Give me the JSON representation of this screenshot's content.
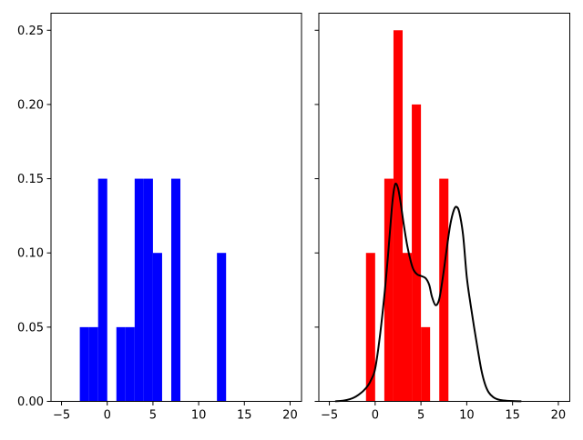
{
  "figure": {
    "background": "#ffffff",
    "frame_color": "#000000",
    "tick_color": "#000000",
    "title": ""
  },
  "chart_data": [
    {
      "type": "bar",
      "subtype": "histogram-density",
      "name": "left-histogram",
      "title": "",
      "xlabel": "",
      "ylabel": "",
      "bar_color": "#0000ff",
      "grid": false,
      "legend": null,
      "xlim": [
        -6.15,
        21.25
      ],
      "ylim": [
        0,
        0.2615
      ],
      "xticks": [
        -5,
        0,
        5,
        10,
        15,
        20
      ],
      "xtick_labels": [
        "−5",
        "0",
        "5",
        "10",
        "15",
        "20"
      ],
      "yticks": [
        0.0,
        0.05,
        0.1,
        0.15,
        0.2,
        0.25
      ],
      "ytick_labels": [
        "0.00",
        "0.05",
        "0.10",
        "0.15",
        "0.20",
        "0.25"
      ],
      "show_ytick_labels": true,
      "bins": [
        [
          -3,
          -2,
          0.05
        ],
        [
          -2,
          -1,
          0.05
        ],
        [
          -1,
          0,
          0.15
        ],
        [
          1,
          2,
          0.05
        ],
        [
          2,
          3,
          0.05
        ],
        [
          3,
          4,
          0.15
        ],
        [
          4,
          5,
          0.15
        ],
        [
          5,
          6,
          0.1
        ],
        [
          7,
          8,
          0.15
        ],
        [
          12,
          13,
          0.1
        ]
      ],
      "curve": null
    },
    {
      "type": "bar",
      "subtype": "histogram-density-with-kde",
      "name": "right-histogram",
      "title": "",
      "xlabel": "",
      "ylabel": "",
      "bar_color": "#ff0000",
      "grid": false,
      "legend": null,
      "xlim": [
        -6.15,
        21.25
      ],
      "ylim": [
        0,
        0.2615
      ],
      "xticks": [
        -5,
        0,
        5,
        10,
        15,
        20
      ],
      "xtick_labels": [
        "−5",
        "0",
        "5",
        "10",
        "15",
        "20"
      ],
      "yticks": [
        0.0,
        0.05,
        0.1,
        0.15,
        0.2,
        0.25
      ],
      "ytick_labels": [
        "0.00",
        "0.05",
        "0.10",
        "0.15",
        "0.20",
        "0.25"
      ],
      "show_ytick_labels": false,
      "bins": [
        [
          -1,
          0,
          0.1
        ],
        [
          1,
          2,
          0.15
        ],
        [
          2,
          3,
          0.25
        ],
        [
          3,
          4,
          0.1
        ],
        [
          4,
          5,
          0.2
        ],
        [
          5,
          6,
          0.05
        ],
        [
          7,
          8,
          0.15
        ]
      ],
      "curve": {
        "name": "kde-curve",
        "color": "#000000",
        "line_width": 2,
        "points": [
          [
            -4.3,
            0.0001
          ],
          [
            -3.8,
            0.0003
          ],
          [
            -3.3,
            0.0007
          ],
          [
            -2.8,
            0.0014
          ],
          [
            -2.3,
            0.0026
          ],
          [
            -1.8,
            0.0045
          ],
          [
            -1.3,
            0.007
          ],
          [
            -0.8,
            0.0105
          ],
          [
            -0.4,
            0.015
          ],
          [
            0.0,
            0.022
          ],
          [
            0.5,
            0.043
          ],
          [
            1.0,
            0.071
          ],
          [
            1.4,
            0.098
          ],
          [
            1.7,
            0.121
          ],
          [
            1.95,
            0.138
          ],
          [
            2.2,
            0.1465
          ],
          [
            2.5,
            0.1435
          ],
          [
            2.8,
            0.133
          ],
          [
            3.1,
            0.12
          ],
          [
            3.5,
            0.105
          ],
          [
            3.9,
            0.094
          ],
          [
            4.2,
            0.0885
          ],
          [
            4.6,
            0.0855
          ],
          [
            5.0,
            0.0845
          ],
          [
            5.5,
            0.083
          ],
          [
            5.9,
            0.0785
          ],
          [
            6.2,
            0.0705
          ],
          [
            6.6,
            0.0648
          ],
          [
            7.0,
            0.069
          ],
          [
            7.4,
            0.084
          ],
          [
            7.8,
            0.102
          ],
          [
            8.2,
            0.119
          ],
          [
            8.6,
            0.129
          ],
          [
            8.9,
            0.131
          ],
          [
            9.2,
            0.127
          ],
          [
            9.6,
            0.112
          ],
          [
            10.0,
            0.084
          ],
          [
            10.4,
            0.066
          ],
          [
            10.8,
            0.05
          ],
          [
            11.2,
            0.035
          ],
          [
            11.6,
            0.021
          ],
          [
            12.0,
            0.0115
          ],
          [
            12.4,
            0.006
          ],
          [
            12.9,
            0.0028
          ],
          [
            13.4,
            0.0013
          ],
          [
            14.0,
            0.0006
          ],
          [
            15.0,
            0.0002
          ],
          [
            15.9,
            0.0001
          ]
        ]
      }
    }
  ]
}
